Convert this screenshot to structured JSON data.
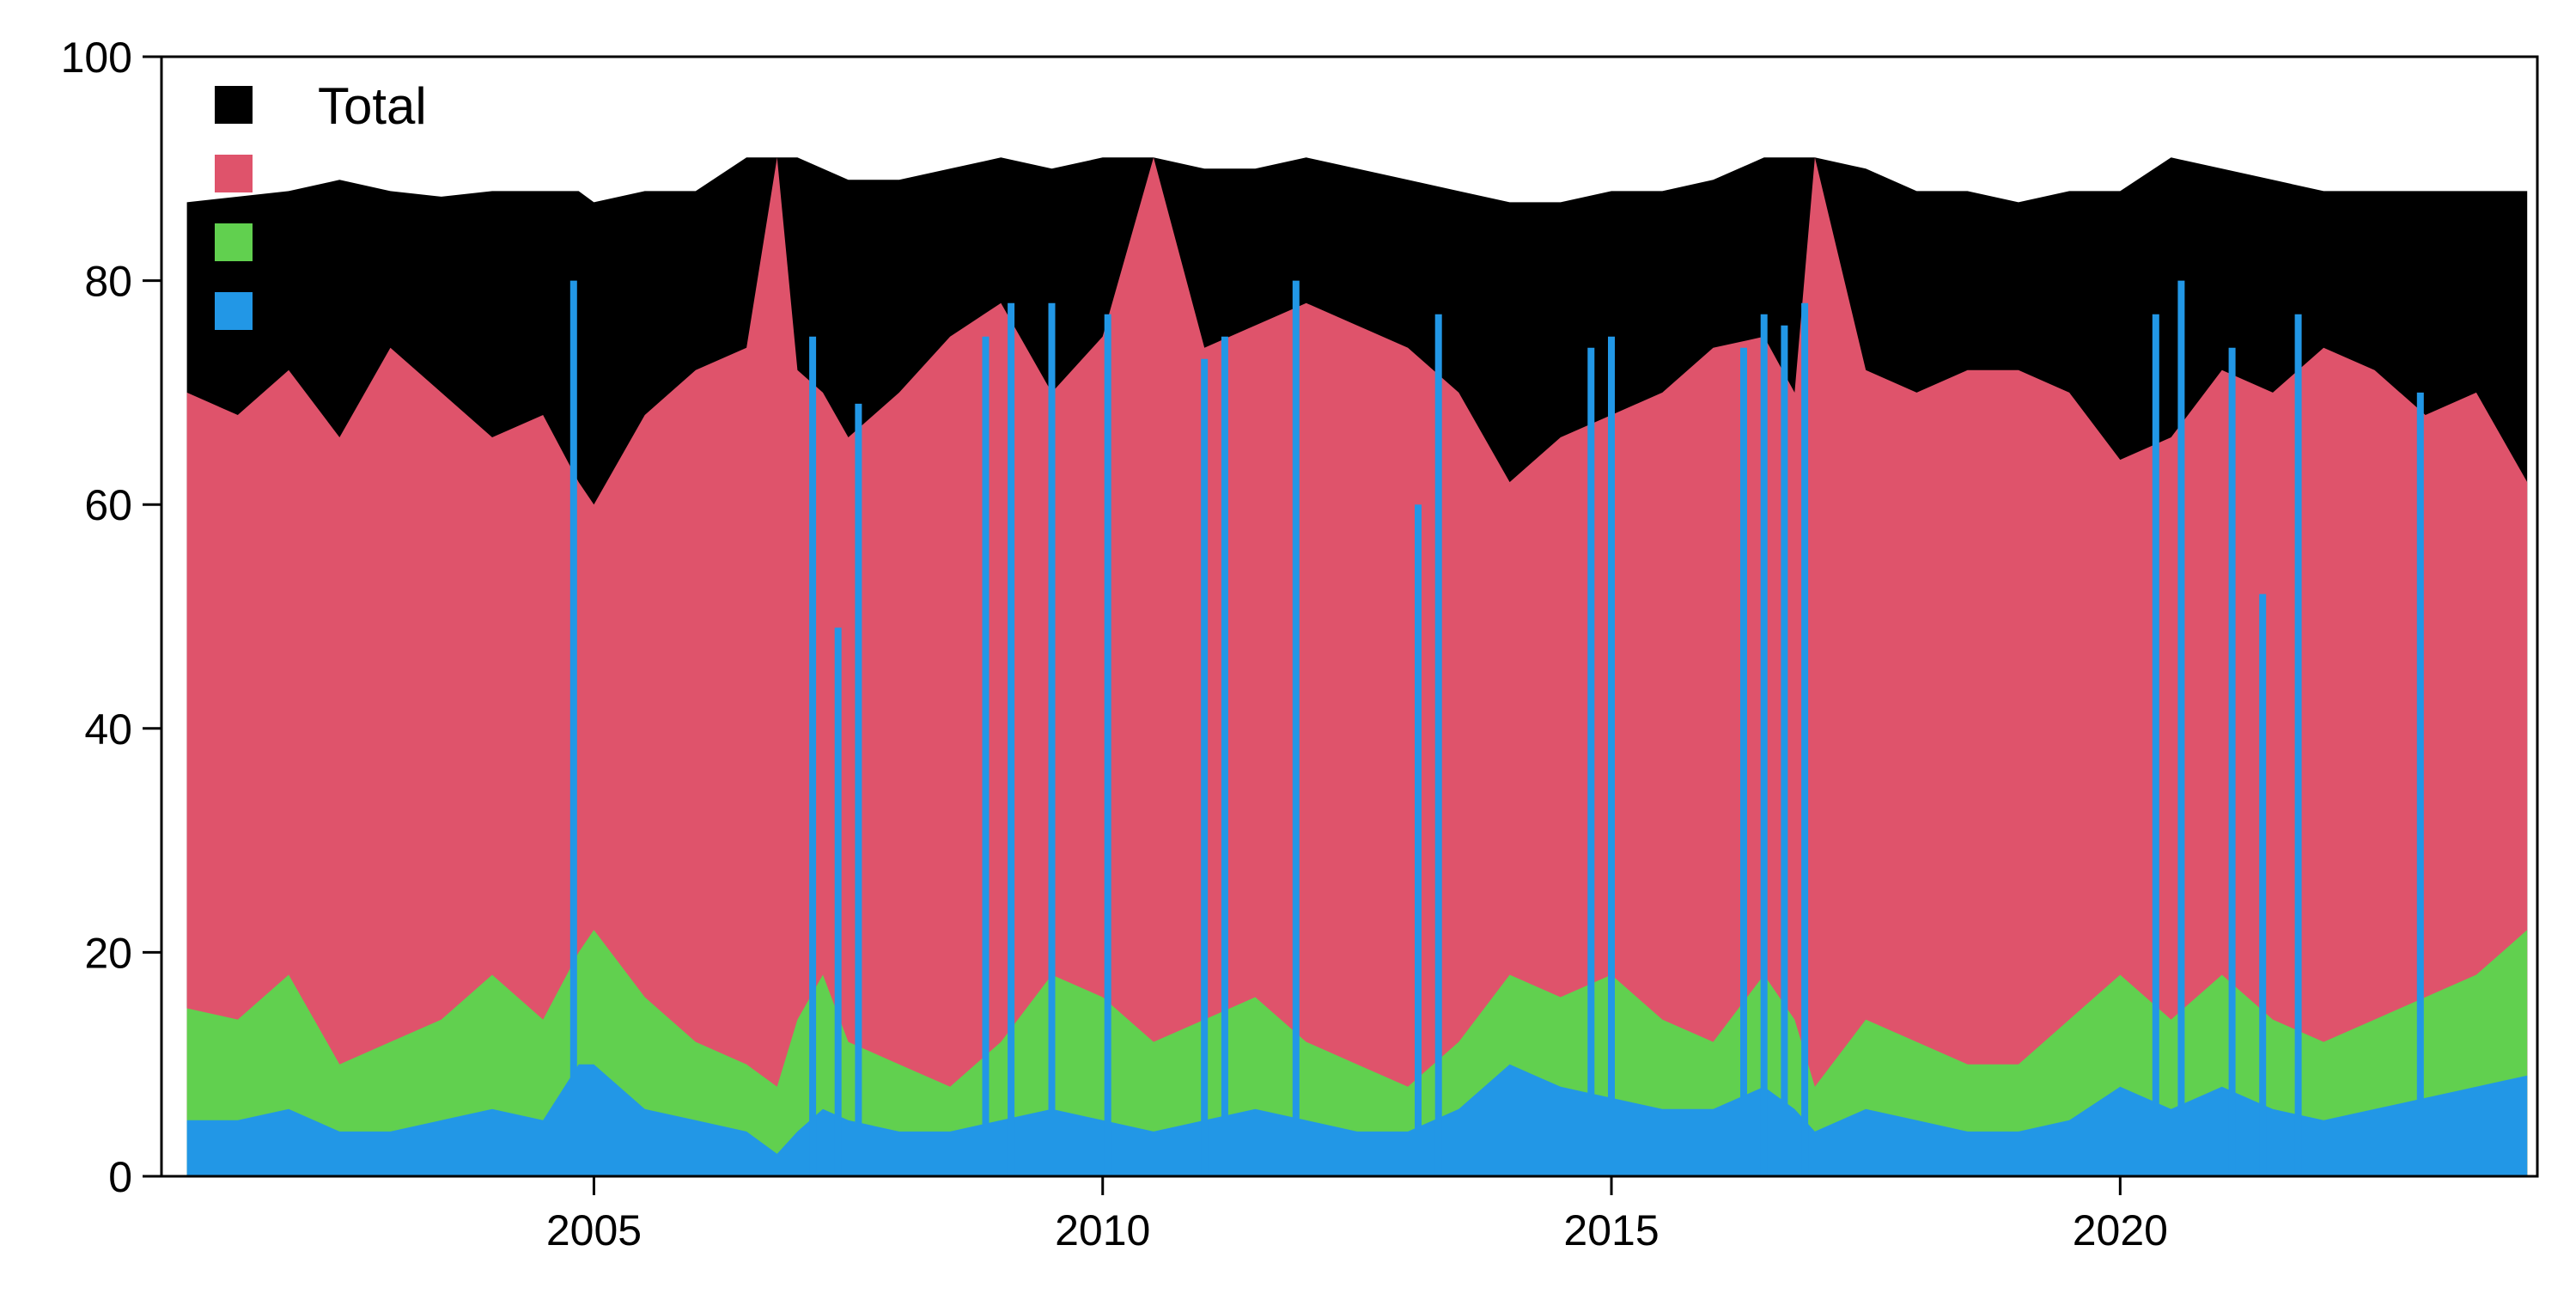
{
  "chart_data": {
    "type": "area",
    "stacked": true,
    "title": "",
    "xlabel": "",
    "ylabel": "",
    "xlim": [
      2000.75,
      2024.1
    ],
    "ylim": [
      0,
      100
    ],
    "x_ticks": [
      2005,
      2010,
      2015,
      2020
    ],
    "x_tick_labels": [
      "2005",
      "2010",
      "2015",
      "2020"
    ],
    "y_ticks": [
      0,
      20,
      40,
      60,
      80,
      100
    ],
    "y_tick_labels": [
      "0",
      "20",
      "40",
      "60",
      "80",
      "100"
    ],
    "grid": false,
    "legend": {
      "position": "top-left",
      "entries": [
        "Total",
        "",
        "",
        ""
      ]
    },
    "x": [
      2001.0,
      2001.5,
      2002.0,
      2002.5,
      2003.0,
      2003.5,
      2004.0,
      2004.5,
      2004.85,
      2005.0,
      2005.5,
      2006.0,
      2006.5,
      2006.8,
      2007.0,
      2007.25,
      2007.5,
      2008.0,
      2008.5,
      2009.0,
      2009.5,
      2010.0,
      2010.5,
      2011.0,
      2011.5,
      2012.0,
      2012.5,
      2013.0,
      2013.5,
      2014.0,
      2014.5,
      2015.0,
      2015.5,
      2016.0,
      2016.5,
      2016.8,
      2017.0,
      2017.5,
      2018.0,
      2018.5,
      2019.0,
      2019.5,
      2020.0,
      2020.5,
      2021.0,
      2021.5,
      2022.0,
      2022.5,
      2023.0,
      2023.5,
      2024.0
    ],
    "series": [
      {
        "name": "Total",
        "color": "#000000",
        "values": [
          87,
          87.5,
          88,
          89,
          88,
          87.5,
          88,
          88,
          88,
          87,
          88,
          88,
          91,
          91,
          91,
          90,
          89,
          89,
          90,
          91,
          90,
          91,
          91,
          90,
          90,
          91,
          90,
          89,
          88,
          87,
          87,
          88,
          88,
          89,
          91,
          91,
          91,
          90,
          88,
          88,
          87,
          88,
          88,
          91,
          90,
          89,
          88,
          88,
          88,
          88,
          88
        ]
      },
      {
        "name": "",
        "color": "#df536b",
        "values": [
          70,
          68,
          72,
          66,
          74,
          70,
          66,
          68,
          62,
          60,
          68,
          72,
          74,
          91,
          72,
          70,
          66,
          70,
          75,
          78,
          70,
          75,
          91,
          74,
          76,
          78,
          76,
          74,
          70,
          62,
          66,
          68,
          70,
          74,
          75,
          70,
          91,
          72,
          70,
          72,
          72,
          70,
          64,
          66,
          72,
          70,
          74,
          72,
          68,
          70,
          62
        ]
      },
      {
        "name": "",
        "color": "#61d04f",
        "values": [
          15,
          14,
          18,
          10,
          12,
          14,
          18,
          14,
          20,
          22,
          16,
          12,
          10,
          8,
          14,
          18,
          12,
          10,
          8,
          12,
          18,
          16,
          12,
          14,
          16,
          12,
          10,
          8,
          12,
          18,
          16,
          18,
          14,
          12,
          18,
          14,
          8,
          14,
          12,
          10,
          10,
          14,
          18,
          14,
          18,
          14,
          12,
          14,
          16,
          18,
          22
        ]
      },
      {
        "name": "",
        "color": "#2297e6",
        "values": [
          5,
          5,
          6,
          4,
          4,
          5,
          6,
          5,
          10,
          10,
          6,
          5,
          4,
          2,
          4,
          6,
          5,
          4,
          4,
          5,
          6,
          5,
          4,
          5,
          6,
          5,
          4,
          4,
          6,
          10,
          8,
          7,
          6,
          6,
          8,
          6,
          4,
          6,
          5,
          4,
          4,
          5,
          8,
          6,
          8,
          6,
          5,
          6,
          7,
          8,
          9
        ]
      }
    ],
    "spikes": [
      {
        "x": 2004.8,
        "series": "",
        "color": "#2297e6",
        "value": 80
      },
      {
        "x": 2007.15,
        "series": "",
        "color": "#2297e6",
        "value": 75
      },
      {
        "x": 2007.4,
        "series": "",
        "color": "#2297e6",
        "value": 49
      },
      {
        "x": 2007.6,
        "series": "",
        "color": "#2297e6",
        "value": 69
      },
      {
        "x": 2008.85,
        "series": "",
        "color": "#2297e6",
        "value": 75
      },
      {
        "x": 2009.1,
        "series": "",
        "color": "#2297e6",
        "value": 78
      },
      {
        "x": 2009.5,
        "series": "",
        "color": "#2297e6",
        "value": 78
      },
      {
        "x": 2010.05,
        "series": "",
        "color": "#2297e6",
        "value": 77
      },
      {
        "x": 2011.0,
        "series": "",
        "color": "#2297e6",
        "value": 73
      },
      {
        "x": 2011.2,
        "series": "",
        "color": "#2297e6",
        "value": 75
      },
      {
        "x": 2011.9,
        "series": "",
        "color": "#2297e6",
        "value": 80
      },
      {
        "x": 2013.1,
        "series": "",
        "color": "#2297e6",
        "value": 60
      },
      {
        "x": 2013.3,
        "series": "",
        "color": "#2297e6",
        "value": 77
      },
      {
        "x": 2014.8,
        "series": "",
        "color": "#2297e6",
        "value": 74
      },
      {
        "x": 2015.0,
        "series": "",
        "color": "#2297e6",
        "value": 75
      },
      {
        "x": 2016.3,
        "series": "",
        "color": "#2297e6",
        "value": 74
      },
      {
        "x": 2016.5,
        "series": "",
        "color": "#2297e6",
        "value": 77
      },
      {
        "x": 2016.7,
        "series": "",
        "color": "#2297e6",
        "value": 76
      },
      {
        "x": 2016.9,
        "series": "",
        "color": "#2297e6",
        "value": 78
      },
      {
        "x": 2020.35,
        "series": "",
        "color": "#2297e6",
        "value": 77
      },
      {
        "x": 2020.6,
        "series": "",
        "color": "#2297e6",
        "value": 80
      },
      {
        "x": 2021.1,
        "series": "",
        "color": "#2297e6",
        "value": 74
      },
      {
        "x": 2021.4,
        "series": "",
        "color": "#2297e6",
        "value": 52
      },
      {
        "x": 2021.75,
        "series": "",
        "color": "#2297e6",
        "value": 77
      },
      {
        "x": 2022.95,
        "series": "",
        "color": "#2297e6",
        "value": 70
      }
    ]
  }
}
